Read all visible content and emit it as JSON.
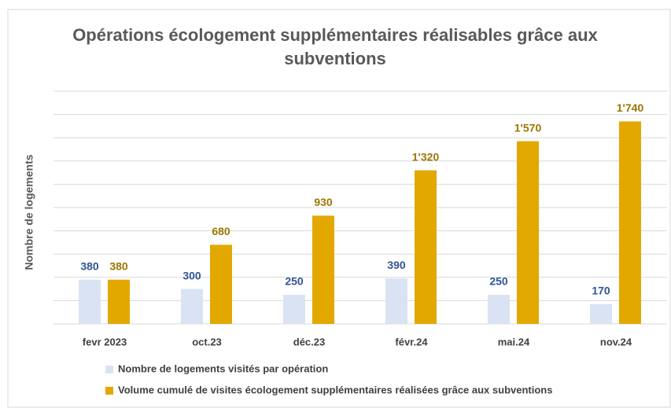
{
  "chart_data": {
    "type": "bar",
    "title": "Opérations écologement supplémentaires réalisables grâce aux subventions",
    "y_label": "Nombre de logements",
    "categories": [
      "fevr 2023",
      "oct.23",
      "déc.23",
      "févr.24",
      "mai.24",
      "nov.24"
    ],
    "series": [
      {
        "name": "Nombre de logements visités par opération",
        "color": "#dae3f3",
        "label_color": "#2f5597",
        "values": [
          380,
          300,
          250,
          390,
          250,
          170
        ]
      },
      {
        "name": "Volume cumulé de visites écologement supplémentaires réalisées grâce aux subventions",
        "color": "#e2a800",
        "label_color": "#9c7600",
        "values": [
          380,
          680,
          930,
          1320,
          1570,
          1740
        ],
        "value_labels": [
          "380",
          "680",
          "930",
          "1'320",
          "1'570",
          "1'740"
        ]
      }
    ],
    "ylim": [
      0,
      2000
    ],
    "yticks": [
      0,
      200,
      400,
      600,
      800,
      1000,
      1200,
      1400,
      1600,
      1800,
      2000
    ],
    "grid": true
  }
}
